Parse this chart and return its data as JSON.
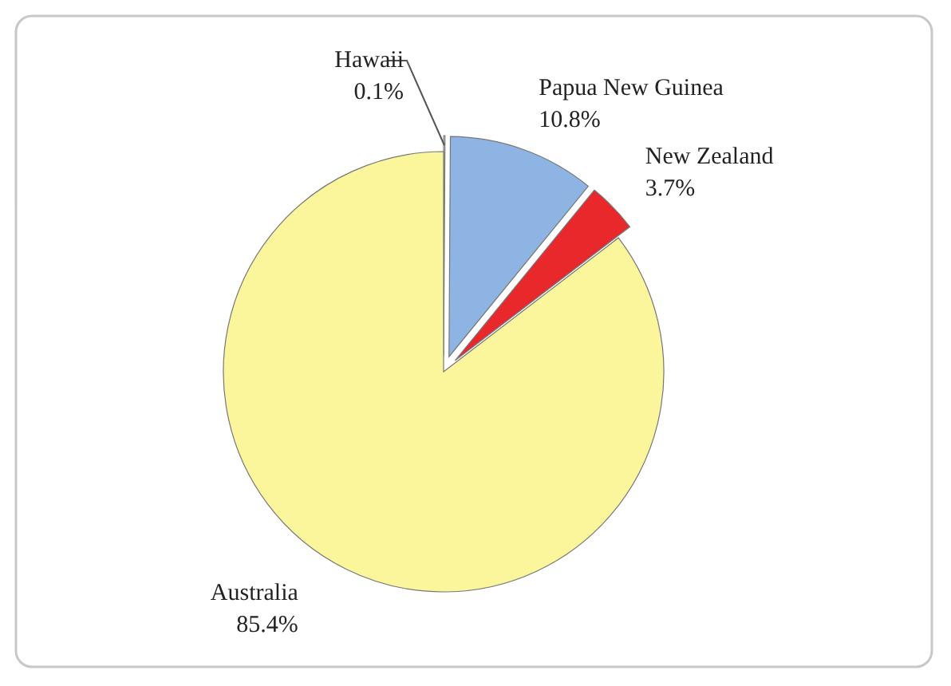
{
  "chart_data": {
    "type": "pie",
    "categories": [
      "Hawaii",
      "Papua New Guinea",
      "New Zealand",
      "Australia"
    ],
    "values": [
      0.1,
      10.8,
      3.7,
      85.4
    ],
    "colors": [
      "#f4f4f4",
      "#8db4e2",
      "#e8282b",
      "#fbf59b"
    ],
    "value_labels": [
      "0.1%",
      "10.8%",
      "3.7%",
      "85.4%"
    ]
  }
}
